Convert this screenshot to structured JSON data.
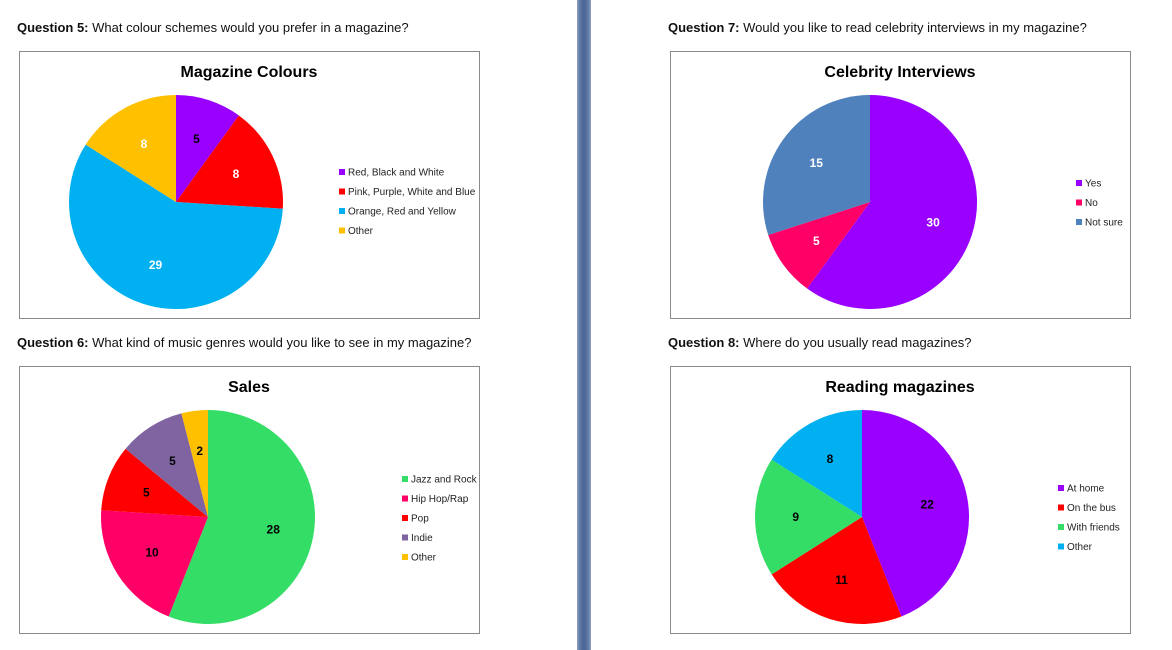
{
  "questions": [
    {
      "label": "Question 5:",
      "text": "What colour schemes would you prefer in a magazine?"
    },
    {
      "label": "Question 6:",
      "text": "What kind of music genres would you like to see in my magazine?"
    },
    {
      "label": "Question 7:",
      "text": "Would you like to read celebrity interviews in my magazine?"
    },
    {
      "label": "Question 8:",
      "text": "Where do you usually read magazines?"
    }
  ],
  "chart_data": [
    {
      "type": "pie",
      "title": "Magazine Colours",
      "legend_position": "right",
      "categories": [
        "Red, Black and White",
        "Pink, Purple, White and Blue",
        "Orange, Red and Yellow",
        "Other"
      ],
      "values": [
        5,
        8,
        29,
        8
      ],
      "colors": [
        "#9900ff",
        "#ff0000",
        "#00b0f0",
        "#ffc000"
      ],
      "label_colors": [
        "#000000",
        "#ffffff",
        "#ffffff",
        "#ffffff"
      ]
    },
    {
      "type": "pie",
      "title": "Sales",
      "legend_position": "right",
      "categories": [
        "Jazz and Rock",
        "Hip Hop/Rap",
        "Pop",
        "Indie",
        "Other"
      ],
      "values": [
        28,
        10,
        5,
        5,
        2
      ],
      "colors": [
        "#33dd66",
        "#ff0066",
        "#ff0000",
        "#8064a2",
        "#ffc000"
      ],
      "label_colors": [
        "#000000",
        "#000000",
        "#000000",
        "#000000",
        "#000000"
      ]
    },
    {
      "type": "pie",
      "title": "Celebrity Interviews",
      "legend_position": "right",
      "categories": [
        "Yes",
        "No",
        "Not sure"
      ],
      "values": [
        30,
        5,
        15
      ],
      "colors": [
        "#9900ff",
        "#ff0066",
        "#4f81bd"
      ],
      "label_colors": [
        "#ffffff",
        "#ffffff",
        "#ffffff"
      ]
    },
    {
      "type": "pie",
      "title": "Reading magazines",
      "legend_position": "right",
      "categories": [
        "At home",
        "On the bus",
        "With friends",
        "Other"
      ],
      "values": [
        22,
        11,
        9,
        8
      ],
      "colors": [
        "#9900ff",
        "#ff0000",
        "#33dd66",
        "#00b0f0"
      ],
      "label_colors": [
        "#000000",
        "#000000",
        "#000000",
        "#000000"
      ]
    }
  ]
}
